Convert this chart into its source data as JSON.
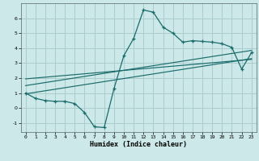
{
  "title": "",
  "xlabel": "Humidex (Indice chaleur)",
  "bg_color": "#cce8e8",
  "grid_color": "#aacccc",
  "line_color": "#1a6b6b",
  "xlim": [
    -0.5,
    23.5
  ],
  "ylim": [
    -1.6,
    7.0
  ],
  "xticks": [
    0,
    1,
    2,
    3,
    4,
    5,
    6,
    7,
    8,
    9,
    10,
    11,
    12,
    13,
    14,
    15,
    16,
    17,
    18,
    19,
    20,
    21,
    22,
    23
  ],
  "yticks": [
    -1,
    0,
    1,
    2,
    3,
    4,
    5,
    6
  ],
  "curve1_x": [
    0,
    1,
    2,
    3,
    4,
    5,
    6,
    7,
    8,
    9,
    10,
    11,
    12,
    13,
    14,
    15,
    16,
    17,
    18,
    19,
    20,
    21,
    22,
    23
  ],
  "curve1_y": [
    1.0,
    0.65,
    0.5,
    0.45,
    0.45,
    0.3,
    -0.3,
    -1.25,
    -1.3,
    1.3,
    3.5,
    4.65,
    6.55,
    6.4,
    5.4,
    5.0,
    4.4,
    4.5,
    4.45,
    4.4,
    4.3,
    4.05,
    2.6,
    3.7
  ],
  "reg_line1_x": [
    0,
    23
  ],
  "reg_line1_y": [
    0.95,
    3.3
  ],
  "reg_line2_x": [
    0,
    23
  ],
  "reg_line2_y": [
    1.5,
    3.85
  ],
  "reg_line3_x": [
    0,
    23
  ],
  "reg_line3_y": [
    1.95,
    3.25
  ]
}
